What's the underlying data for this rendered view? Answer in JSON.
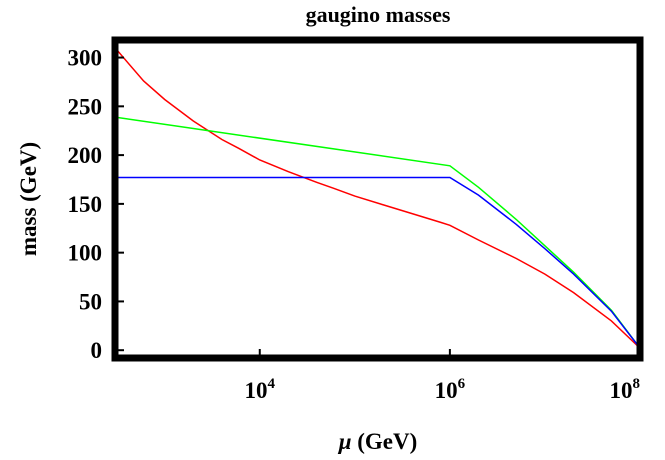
{
  "chart_data": {
    "type": "line",
    "title": "gaugino masses",
    "xlabel_symbol": "μ",
    "xlabel_unit": "(GeV)",
    "ylabel": "mass (GeV)",
    "x_scale": "log",
    "xlim": [
      300,
      100000000
    ],
    "ylim": [
      -8,
      318
    ],
    "grid": false,
    "legend": "none",
    "x_ticks": [
      {
        "value": 10000,
        "base": "10",
        "exp": "4"
      },
      {
        "value": 1000000,
        "base": "10",
        "exp": "6"
      },
      {
        "value": 100000000,
        "base": "10",
        "exp": "8"
      }
    ],
    "y_ticks": [
      0,
      50,
      100,
      150,
      200,
      250,
      300
    ],
    "y_tick_labels": [
      "0",
      "50",
      "100",
      "150",
      "200",
      "250",
      "300"
    ],
    "series": [
      {
        "color": "#ff0000",
        "points": [
          [
            300,
            310
          ],
          [
            600,
            276
          ],
          [
            1000,
            257
          ],
          [
            2000,
            235
          ],
          [
            4000,
            216
          ],
          [
            6000,
            207
          ],
          [
            10000,
            195
          ],
          [
            20000,
            183
          ],
          [
            40000,
            172
          ],
          [
            60000,
            166
          ],
          [
            100000,
            158
          ],
          [
            200000,
            149
          ],
          [
            400000,
            140
          ],
          [
            800000,
            131
          ],
          [
            1000000,
            128
          ],
          [
            2000000,
            113
          ],
          [
            5000000,
            94
          ],
          [
            10000000,
            78
          ],
          [
            20000000,
            59
          ],
          [
            50000000,
            30
          ],
          [
            100000000,
            2
          ]
        ]
      },
      {
        "color": "#00ff00",
        "points": [
          [
            300,
            239
          ],
          [
            1000000,
            189
          ],
          [
            2000000,
            167
          ],
          [
            5000000,
            134
          ],
          [
            10000000,
            107
          ],
          [
            20000000,
            80
          ],
          [
            50000000,
            41
          ],
          [
            100000000,
            2
          ]
        ]
      },
      {
        "color": "#0000ff",
        "points": [
          [
            300,
            177
          ],
          [
            1000000,
            177
          ],
          [
            2000000,
            159
          ],
          [
            5000000,
            129
          ],
          [
            10000000,
            104
          ],
          [
            20000000,
            78
          ],
          [
            50000000,
            40
          ],
          [
            100000000,
            2
          ]
        ]
      }
    ]
  }
}
